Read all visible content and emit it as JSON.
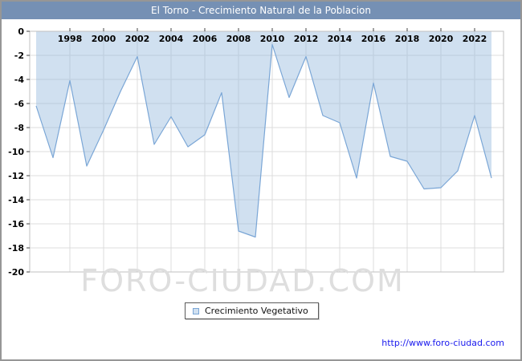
{
  "chart_data": {
    "type": "area",
    "title": "El Torno - Crecimiento Natural de la Poblacion",
    "x_years": [
      1996,
      1997,
      1998,
      1999,
      2000,
      2001,
      2002,
      2003,
      2004,
      2005,
      2006,
      2007,
      2008,
      2009,
      2010,
      2011,
      2012,
      2013,
      2014,
      2015,
      2016,
      2017,
      2018,
      2019,
      2020,
      2021,
      2022,
      2023
    ],
    "series": [
      {
        "name": "Crecimiento Vegetativo",
        "values": [
          -6.2,
          -10.5,
          -4.1,
          -11.2,
          -8.2,
          -5.0,
          -2.1,
          -9.4,
          -7.1,
          -9.6,
          -8.6,
          -5.1,
          -16.6,
          -17.1,
          -1.1,
          -5.5,
          -2.1,
          -7.0,
          -7.6,
          -12.2,
          -4.3,
          -10.4,
          -10.8,
          -13.1,
          -13.0,
          -11.6,
          -7.0,
          -12.2
        ]
      }
    ],
    "ylim": [
      -20,
      0
    ],
    "yticks": [
      0,
      -2,
      -4,
      -6,
      -8,
      -10,
      -12,
      -14,
      -16,
      -18,
      -20
    ],
    "xticks": [
      1998,
      2000,
      2002,
      2004,
      2006,
      2008,
      2010,
      2012,
      2014,
      2016,
      2018,
      2020,
      2022
    ],
    "grid": true,
    "legend_position": "bottom-center",
    "colors": {
      "title_bar": "#7590b4",
      "line": "#7aa6d6",
      "fill_rgba": "rgba(150,187,222,0.45)",
      "grid": "#dcdcdc",
      "plot_border": "#c0c0c0",
      "tick": "#444444",
      "tick_label": "#000000",
      "watermark": "#dedede",
      "url_link": "#1a1aee"
    }
  },
  "legend": {
    "label": "Crecimiento Vegetativo"
  },
  "watermark_text": "FORO-CIUDAD.COM",
  "footer": {
    "url_label": "http://www.foro-ciudad.com"
  }
}
